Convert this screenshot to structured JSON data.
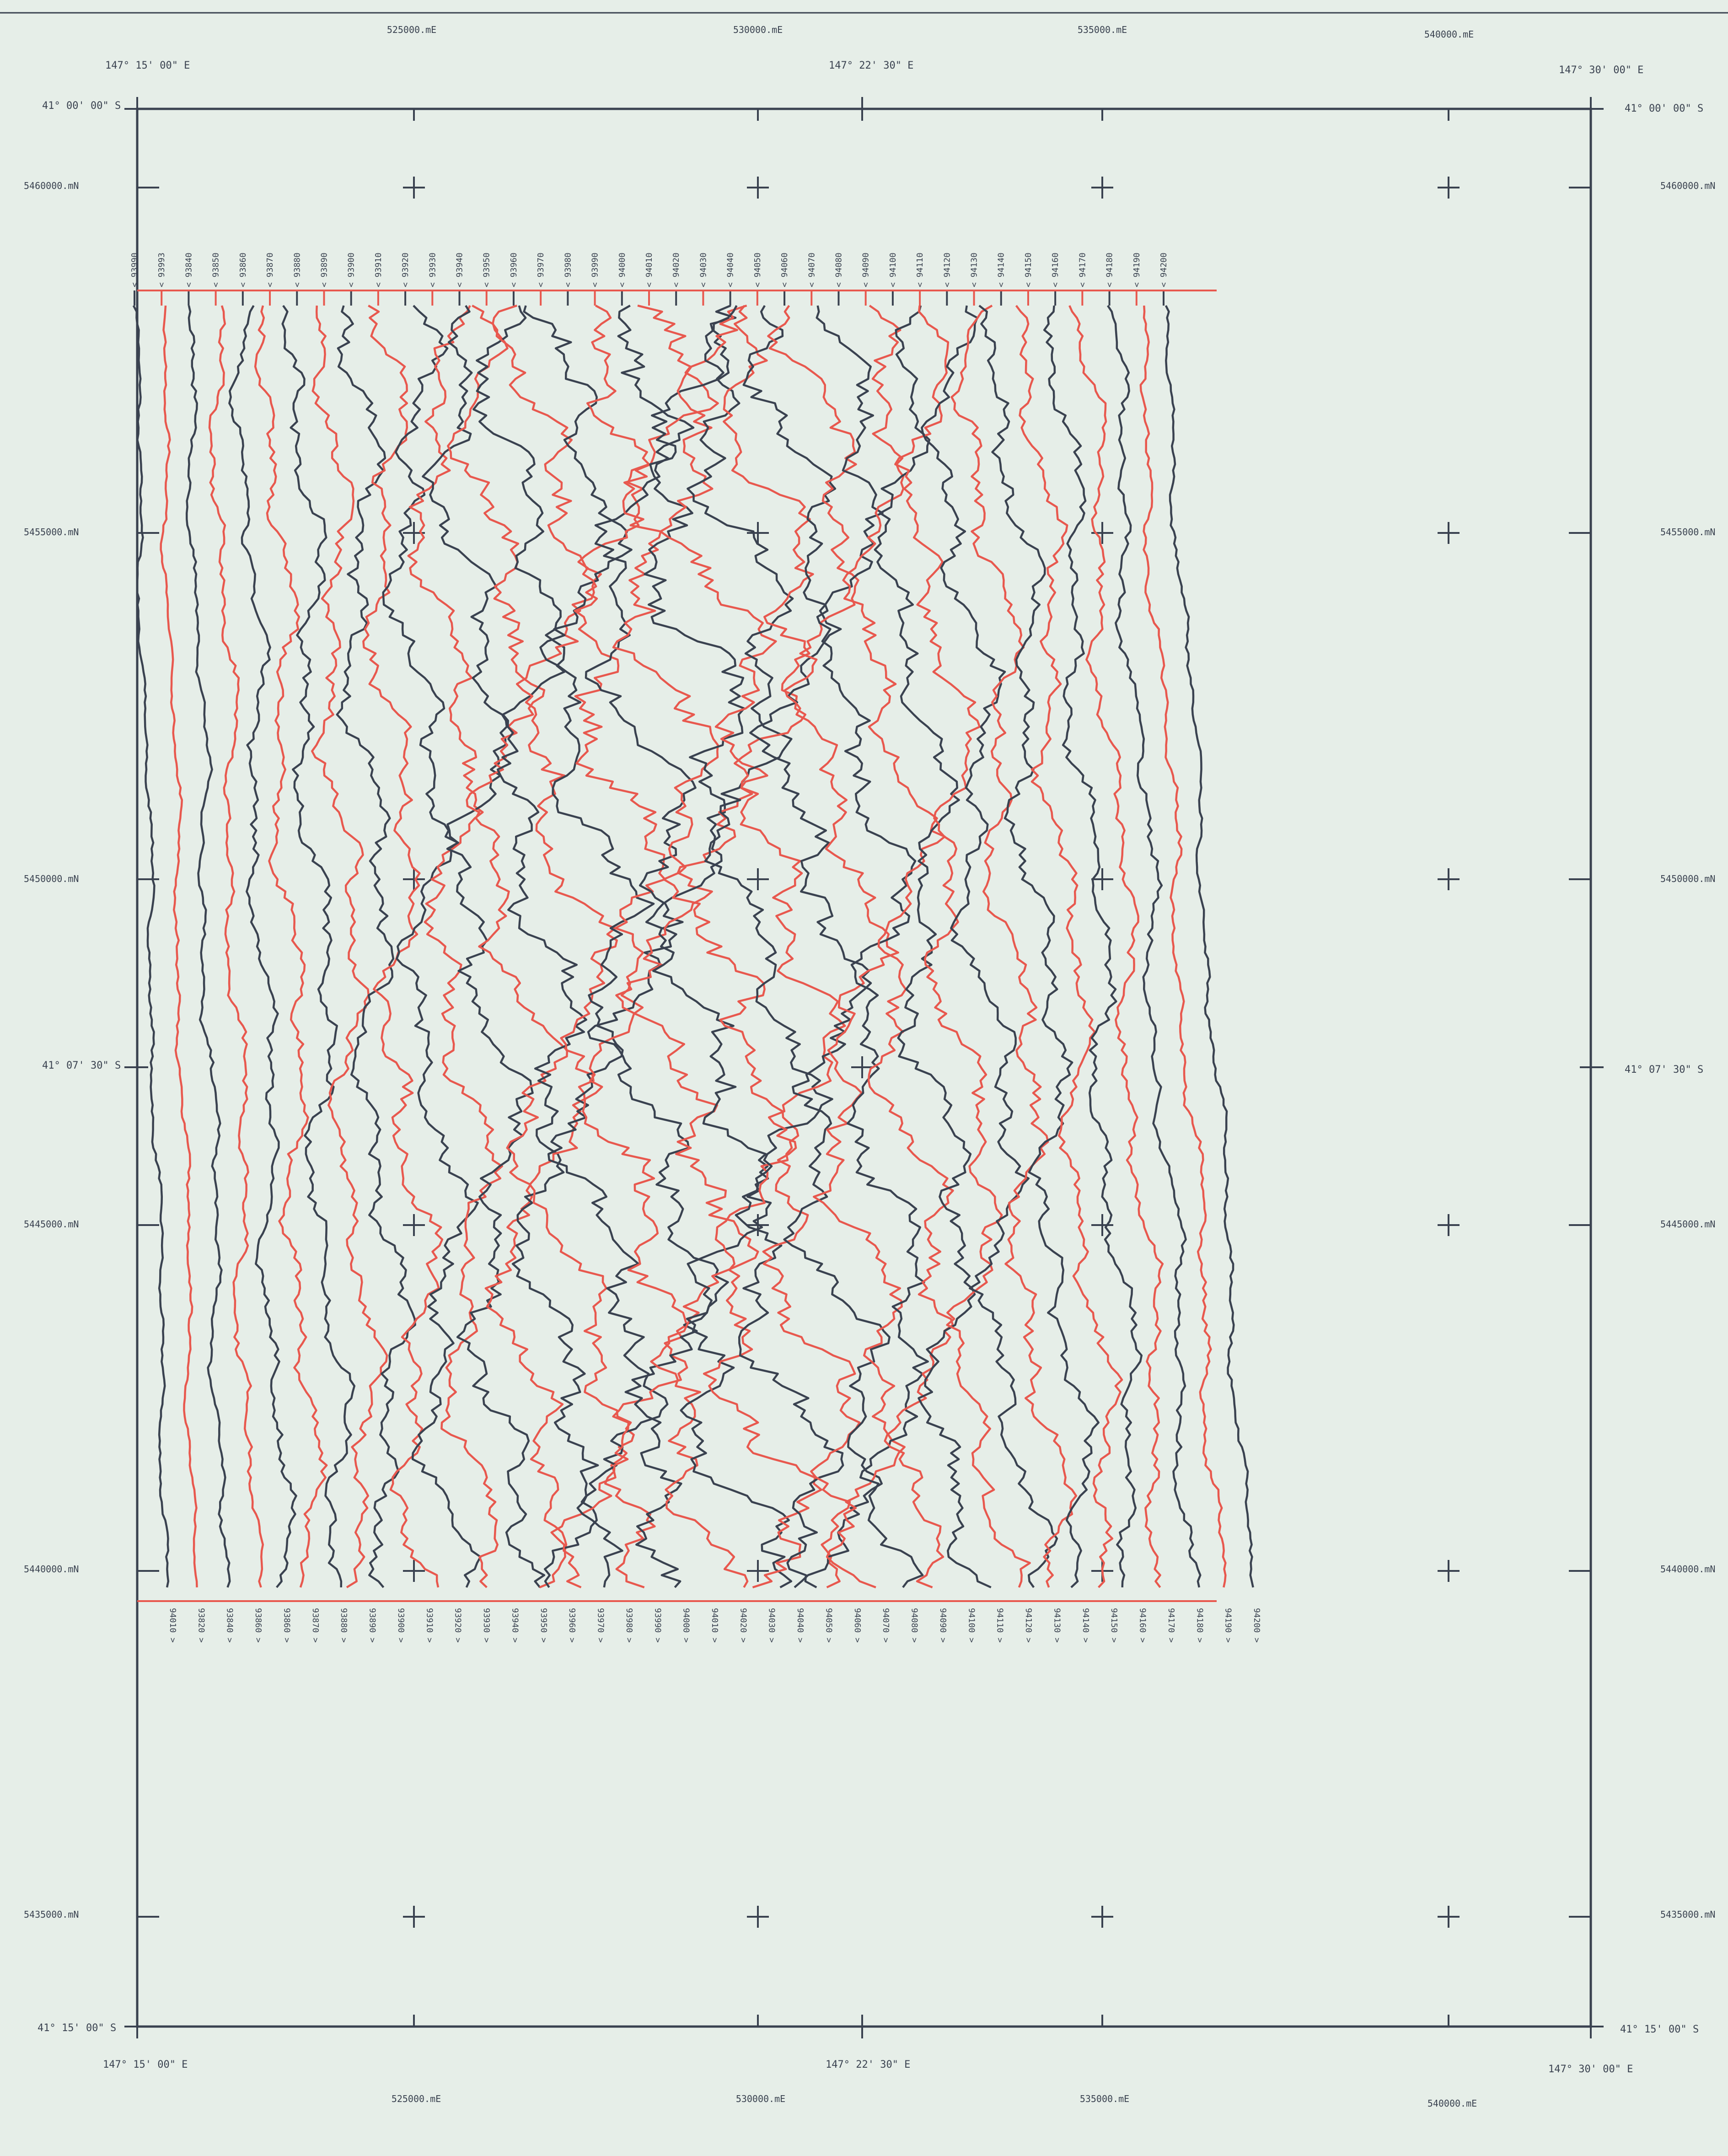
{
  "map": {
    "title": "",
    "colors": {
      "background": "#e6eee8",
      "frame": "#3a4250",
      "trace_dark": "#3a4250",
      "trace_red": "#e8584e"
    },
    "easting_labels": [
      "525000.mE",
      "530000.mE",
      "535000.mE",
      "540000.mE"
    ],
    "northing_labels": [
      "5460000.mN",
      "5455000.mN",
      "5450000.mN",
      "5445000.mN",
      "5440000.mN",
      "5435000.mN"
    ],
    "longitude_labels": [
      "147°  15' 00\" E",
      "147°  22' 30\" E",
      "147°  30' 00\" E"
    ],
    "latitude_labels": [
      "41°  00' 00\" S",
      "41°  07' 30\" S",
      "41°  15' 00\" S"
    ],
    "flight_lines": [
      {
        "top": "93990",
        "bottom": "94010"
      },
      {
        "top": "93993",
        "bottom": "93820"
      },
      {
        "top": "93840",
        "bottom": "93840"
      },
      {
        "top": "93850",
        "bottom": "93860"
      },
      {
        "top": "93860",
        "bottom": "93860"
      },
      {
        "top": "93870",
        "bottom": "93870"
      },
      {
        "top": "93880",
        "bottom": "93880"
      },
      {
        "top": "93890",
        "bottom": "93890"
      },
      {
        "top": "93900",
        "bottom": "93900"
      },
      {
        "top": "93910",
        "bottom": "93910"
      },
      {
        "top": "93920",
        "bottom": "93920"
      },
      {
        "top": "93930",
        "bottom": "93930"
      },
      {
        "top": "93940",
        "bottom": "93940"
      },
      {
        "top": "93950",
        "bottom": "93950"
      },
      {
        "top": "93960",
        "bottom": "93960"
      },
      {
        "top": "93970",
        "bottom": "93970"
      },
      {
        "top": "93980",
        "bottom": "93980"
      },
      {
        "top": "93990",
        "bottom": "93990"
      },
      {
        "top": "94000",
        "bottom": "94000"
      },
      {
        "top": "94010",
        "bottom": "94010"
      },
      {
        "top": "94020",
        "bottom": "94020"
      },
      {
        "top": "94030",
        "bottom": "94030"
      },
      {
        "top": "94040",
        "bottom": "94040"
      },
      {
        "top": "94050",
        "bottom": "94050"
      },
      {
        "top": "94060",
        "bottom": "94060"
      },
      {
        "top": "94070",
        "bottom": "94070"
      },
      {
        "top": "94080",
        "bottom": "94080"
      },
      {
        "top": "94090",
        "bottom": "94090"
      },
      {
        "top": "94100",
        "bottom": "94100"
      },
      {
        "top": "94110",
        "bottom": "94110"
      },
      {
        "top": "94120",
        "bottom": "94120"
      },
      {
        "top": "94130",
        "bottom": "94130"
      },
      {
        "top": "94140",
        "bottom": "94140"
      },
      {
        "top": "94150",
        "bottom": "94150"
      },
      {
        "top": "94160",
        "bottom": "94160"
      },
      {
        "top": "94170",
        "bottom": "94170"
      },
      {
        "top": "94180",
        "bottom": "94180"
      },
      {
        "top": "94190",
        "bottom": "94190"
      },
      {
        "top": "94200",
        "bottom": "94200"
      }
    ]
  }
}
